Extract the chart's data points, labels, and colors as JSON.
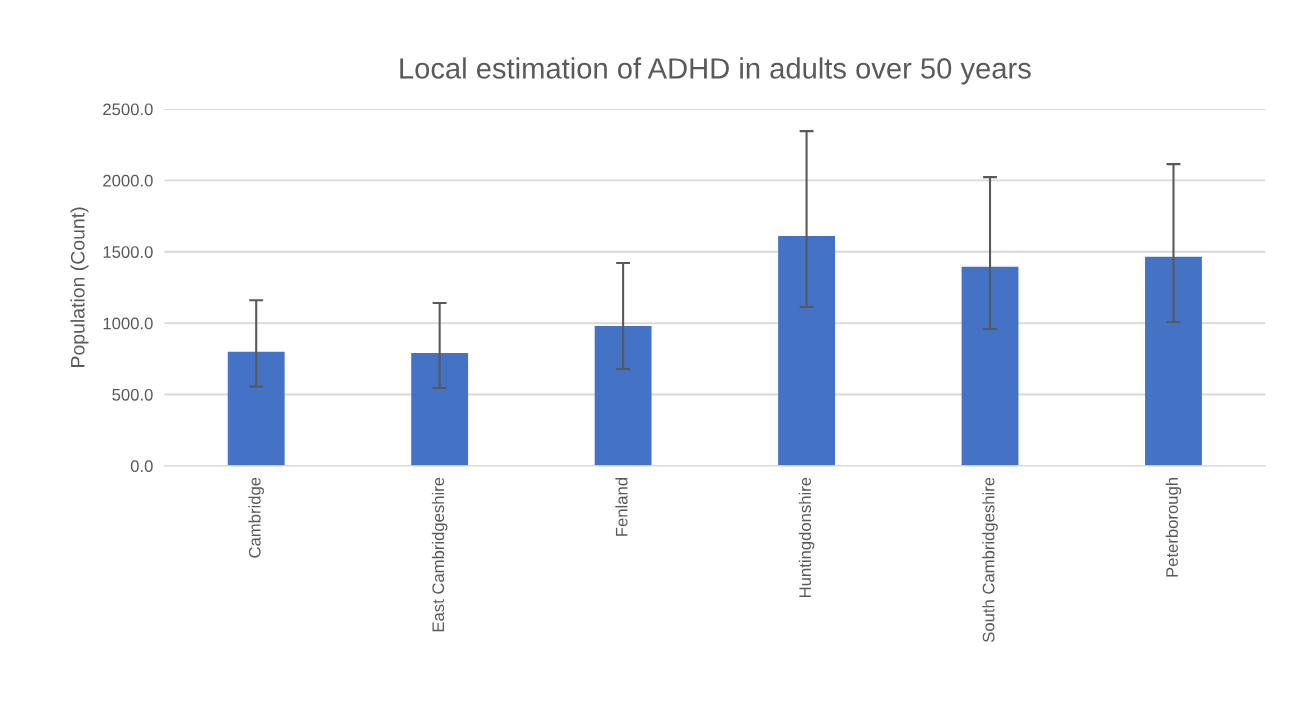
{
  "chart_data": {
    "type": "bar",
    "title": "Local estimation of ADHD in adults over 50 years",
    "ylabel": "Population (Count)",
    "categories": [
      "Cambridge",
      "East Cambridgeshire",
      "Fenland",
      "Huntingdonshire",
      "South Cambridgeshire",
      "Peterborough"
    ],
    "values": [
      800,
      790,
      980,
      1610,
      1395,
      1465
    ],
    "errors": [
      [
        555,
        1160
      ],
      [
        546,
        1141
      ],
      [
        679,
        1421
      ],
      [
        1113,
        2345
      ],
      [
        959,
        2023
      ],
      [
        1008,
        2114
      ]
    ],
    "color": "#4472c4",
    "ylim": [
      0,
      2500
    ],
    "yticks": [
      {
        "value": 0,
        "label": "0.0"
      },
      {
        "value": 500,
        "label": "500.0"
      },
      {
        "value": 1000,
        "label": "1000.0"
      },
      {
        "value": 1500,
        "label": "1500.0"
      },
      {
        "value": 2000,
        "label": "2000.0"
      },
      {
        "value": 2500,
        "label": "2500.0"
      }
    ],
    "grid": "y",
    "legend": false
  }
}
